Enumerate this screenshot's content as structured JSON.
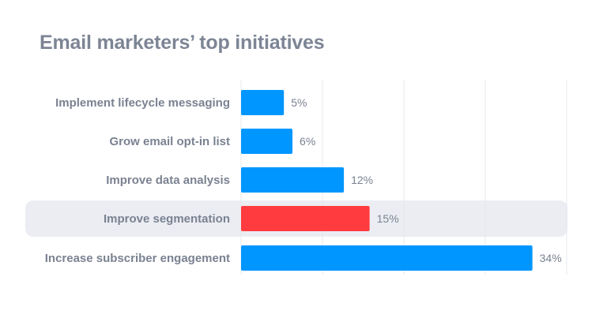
{
  "chart_data": {
    "type": "bar",
    "orientation": "horizontal",
    "title": "Email marketers’ top initiatives",
    "categories": [
      "Implement lifecycle messaging",
      "Grow email opt-in list",
      "Improve data analysis",
      "Improve segmentation",
      "Increase subscriber engagement"
    ],
    "values": [
      5,
      6,
      12,
      15,
      34
    ],
    "value_labels": [
      "5%",
      "6%",
      "12%",
      "15%",
      "34%"
    ],
    "unit": "%",
    "xlim": [
      0,
      38
    ],
    "grid": true,
    "highlighted_category": "Improve segmentation",
    "colors": {
      "bar": "#0096ff",
      "highlight_bar": "#ff3b3f",
      "highlight_band": "#ebedf3",
      "grid": "#e6e8ee",
      "text": "#7a8291"
    }
  }
}
